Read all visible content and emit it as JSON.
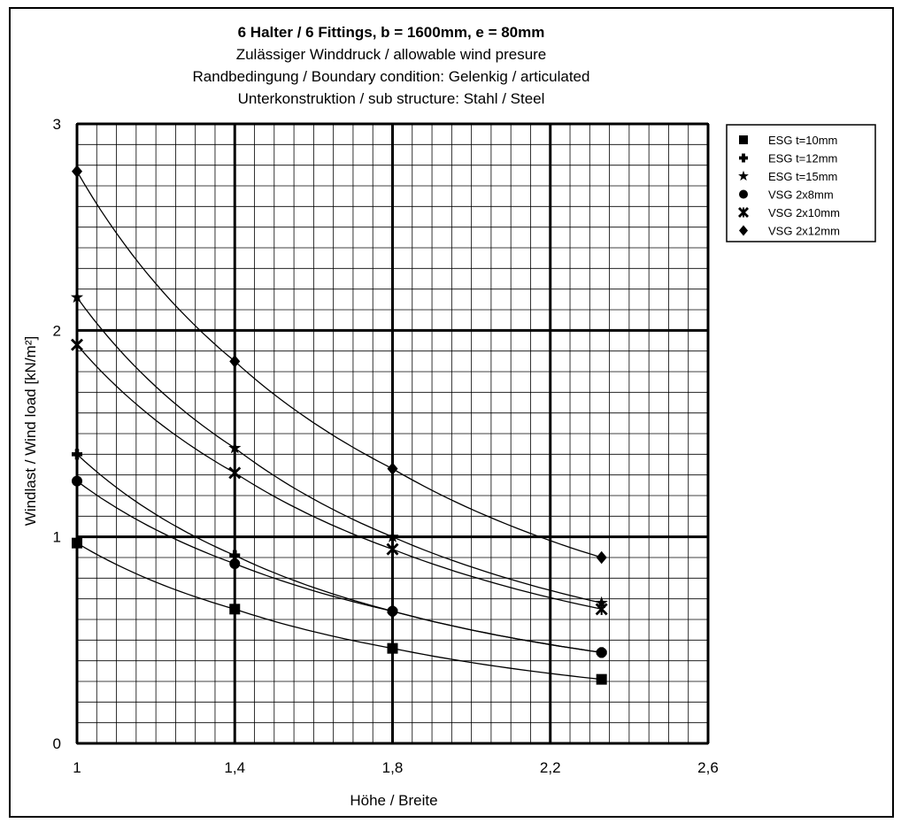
{
  "chart_data": {
    "type": "line",
    "title_lines": [
      "6 Halter / 6 Fittings, b = 1600mm, e = 80mm",
      "Zulässiger Winddruck / allowable wind presure",
      "Randbedingung / Boundary condition: Gelenkig / articulated",
      "Unterkonstruktion / sub structure: Stahl / Steel"
    ],
    "xlabel": "Höhe / Breite",
    "ylabel": "Windlast / Wind load [kN/m²]",
    "xlim": [
      1,
      2.6
    ],
    "ylim": [
      0,
      3
    ],
    "x_ticks": [
      "1",
      "1,4",
      "1,8",
      "2,2",
      "2,6"
    ],
    "y_ticks": [
      "0",
      "1",
      "2",
      "3"
    ],
    "grid": true,
    "legend_position": "top-right",
    "x": [
      1.0,
      1.4,
      1.8,
      2.33
    ],
    "series": [
      {
        "name": "ESG t=10mm",
        "marker": "square",
        "values": [
          0.97,
          0.65,
          0.46,
          0.31
        ]
      },
      {
        "name": "ESG t=12mm",
        "marker": "plus",
        "values": [
          1.4,
          0.91,
          0.64,
          0.44
        ]
      },
      {
        "name": "ESG t=15mm",
        "marker": "star",
        "values": [
          2.16,
          1.43,
          1.0,
          0.68
        ]
      },
      {
        "name": "VSG 2x8mm",
        "marker": "circle",
        "values": [
          1.27,
          0.87,
          0.64,
          0.44
        ]
      },
      {
        "name": "VSG 2x10mm",
        "marker": "x-star",
        "values": [
          1.93,
          1.31,
          0.94,
          0.65
        ]
      },
      {
        "name": "VSG 2x12mm",
        "marker": "diamond",
        "values": [
          2.77,
          1.85,
          1.33,
          0.9
        ]
      }
    ]
  }
}
